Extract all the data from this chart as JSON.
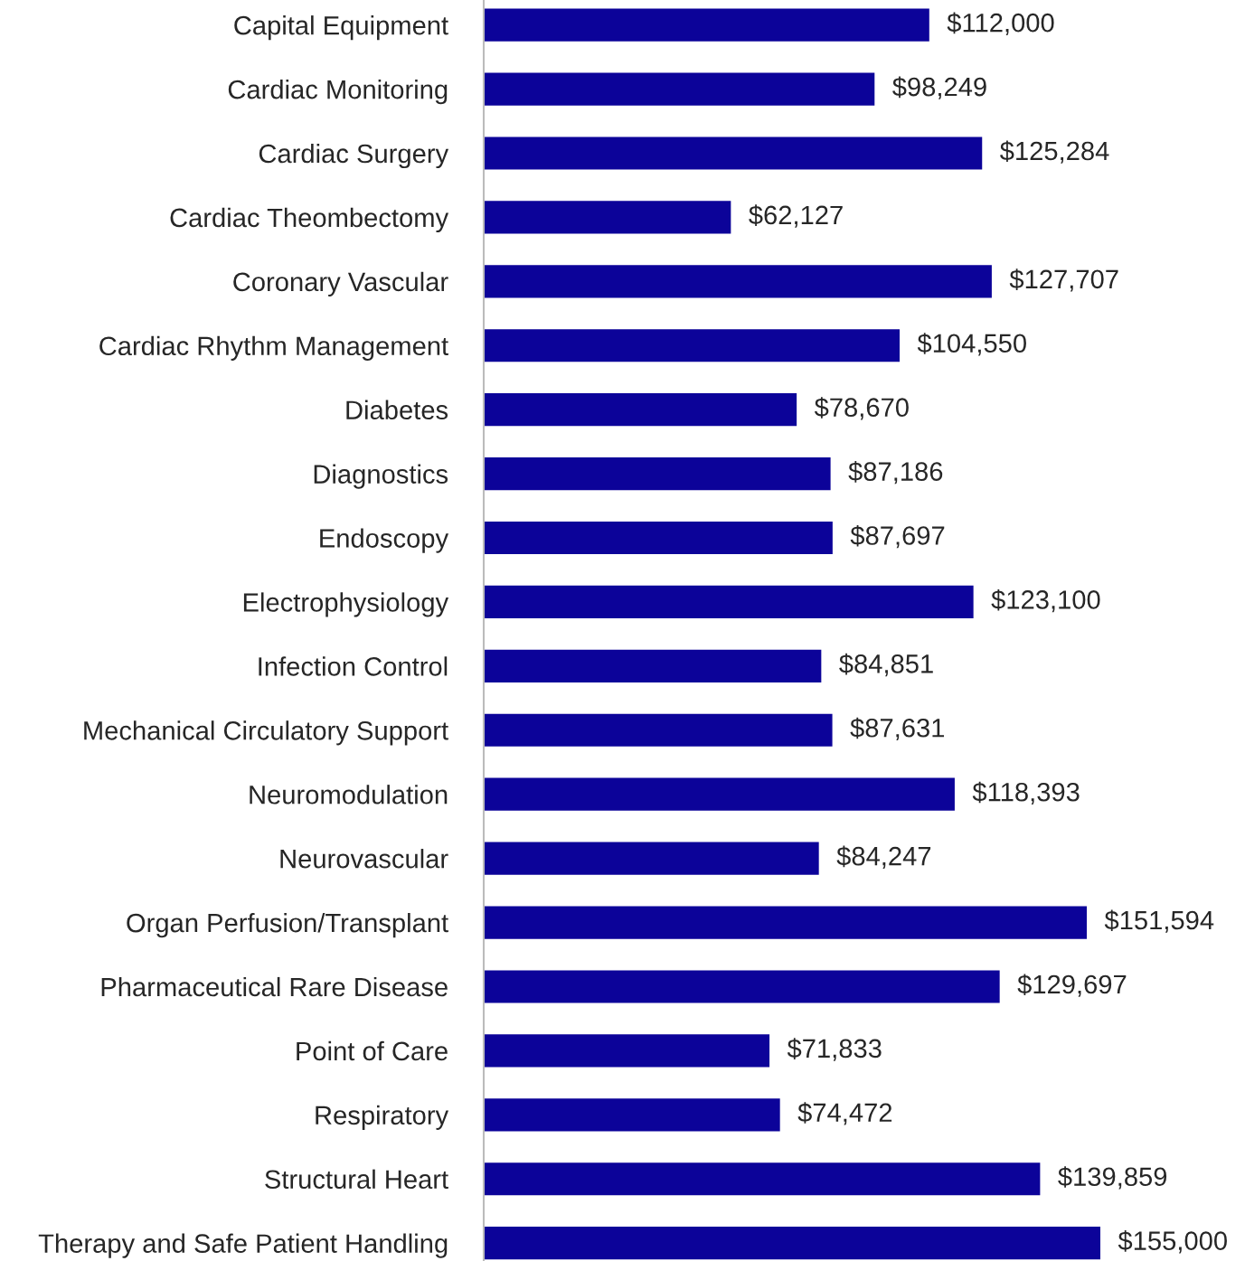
{
  "chart_data": {
    "type": "bar",
    "orientation": "horizontal",
    "categories": [
      "Capital Equipment",
      "Cardiac Monitoring",
      "Cardiac Surgery",
      "Cardiac Theombectomy",
      "Coronary Vascular",
      "Cardiac Rhythm Management",
      "Diabetes",
      "Diagnostics",
      "Endoscopy",
      "Electrophysiology",
      "Infection Control",
      "Mechanical Circulatory Support",
      "Neuromodulation",
      "Neurovascular",
      "Organ Perfusion/Transplant",
      "Pharmaceutical Rare Disease",
      "Point of Care",
      "Respiratory",
      "Structural Heart",
      "Therapy and Safe Patient Handling"
    ],
    "values": [
      112000,
      98249,
      125284,
      62127,
      127707,
      104550,
      78670,
      87186,
      87697,
      123100,
      84851,
      87631,
      118393,
      84247,
      151594,
      129697,
      71833,
      74472,
      139859,
      155000
    ],
    "value_labels": [
      "$112,000",
      "$98,249",
      "$125,284",
      "$62,127",
      "$127,707",
      "$104,550",
      "$78,670",
      "$87,186",
      "$87,697",
      "$123,100",
      "$84,851",
      "$87,631",
      "$118,393",
      "$84,247",
      "$151,594",
      "$129,697",
      "$71,833",
      "$74,472",
      "$139,859",
      "$155,000"
    ],
    "color": "#0c0399",
    "grid": false,
    "legend": false
  }
}
